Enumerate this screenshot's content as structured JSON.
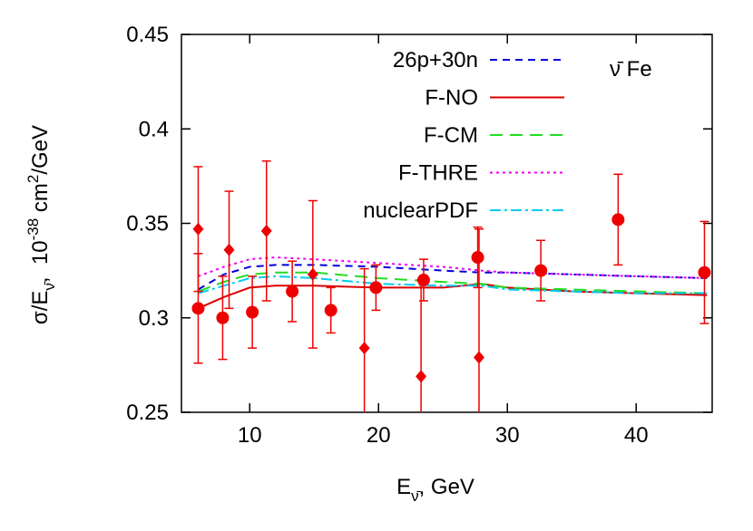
{
  "chart_data": {
    "type": "scatter-lines",
    "xlabel": [
      "E",
      "ν̄",
      ", GeV"
    ],
    "ylabel": [
      "σ/E",
      "ν̄",
      ",  10",
      "-38",
      " cm",
      "2",
      "/GeV"
    ],
    "annotation": "ν̄ Fe",
    "xlim": [
      4.7,
      45.9
    ],
    "xticks": [
      10,
      20,
      30,
      40
    ],
    "ylim": [
      0.25,
      0.45
    ],
    "yticks": [
      0.25,
      0.3,
      0.35,
      0.4,
      0.45
    ],
    "legend": "top-right",
    "lines": [
      {
        "name": "26p+30n",
        "color": "#0000dd",
        "dash": "8,6",
        "x": [
          6,
          8,
          10,
          12,
          15,
          20,
          25,
          28,
          30,
          35,
          40,
          45.5
        ],
        "values": [
          0.315,
          0.323,
          0.327,
          0.328,
          0.328,
          0.327,
          0.325,
          0.324,
          0.324,
          0.323,
          0.322,
          0.321
        ]
      },
      {
        "name": "F-NO",
        "color": "#dd0000",
        "dash": "none",
        "x": [
          6,
          8,
          10,
          12,
          15,
          20,
          25,
          28,
          30,
          35,
          40,
          45.5
        ],
        "values": [
          0.305,
          0.311,
          0.316,
          0.317,
          0.317,
          0.316,
          0.316,
          0.318,
          0.316,
          0.314,
          0.313,
          0.312
        ]
      },
      {
        "name": "F-CM",
        "color": "#22dd22",
        "dash": "14,8",
        "x": [
          6,
          8,
          10,
          12,
          15,
          20,
          25,
          28,
          30,
          35,
          40,
          45.5
        ],
        "values": [
          0.314,
          0.319,
          0.323,
          0.324,
          0.324,
          0.321,
          0.319,
          0.318,
          0.316,
          0.315,
          0.314,
          0.313
        ]
      },
      {
        "name": "F-THRE",
        "color": "#ee00ee",
        "dash": "3,4",
        "x": [
          6,
          8,
          10,
          12,
          15,
          20,
          25,
          28,
          30,
          35,
          40,
          45.5
        ],
        "values": [
          0.322,
          0.327,
          0.331,
          0.332,
          0.331,
          0.329,
          0.327,
          0.325,
          0.324,
          0.323,
          0.322,
          0.321
        ]
      },
      {
        "name": "nuclearPDF",
        "color": "#00ccee",
        "dash": "12,4,3,4",
        "x": [
          6,
          8,
          10,
          12,
          15,
          20,
          25,
          28,
          30,
          35,
          40,
          45.5
        ],
        "values": [
          0.313,
          0.317,
          0.321,
          0.322,
          0.321,
          0.318,
          0.317,
          0.317,
          0.315,
          0.314,
          0.313,
          0.313
        ]
      }
    ],
    "points": [
      {
        "marker": "circle",
        "color": "#ee0000",
        "x": [
          6,
          7.9,
          10.2,
          13.3,
          16.3,
          19.8,
          23.5,
          27.7,
          32.6,
          38.6,
          45.3
        ],
        "values": [
          0.305,
          0.3,
          0.303,
          0.314,
          0.304,
          0.316,
          0.32,
          0.332,
          0.325,
          0.352,
          0.324
        ],
        "errors": [
          0.029,
          0.022,
          0.019,
          0.016,
          0.012,
          0.012,
          0.011,
          0.016,
          0.016,
          0.024,
          0.027
        ]
      },
      {
        "marker": "diamond",
        "color": "#ee0000",
        "x": [
          6,
          8.4,
          11.3,
          14.9,
          18.9,
          23.3,
          27.8
        ],
        "values": [
          0.347,
          0.336,
          0.346,
          0.323,
          0.284,
          0.269,
          0.279
        ],
        "errors": [
          0.033,
          0.031,
          0.037,
          0.039,
          0.042,
          0.051,
          0.068
        ]
      }
    ]
  }
}
